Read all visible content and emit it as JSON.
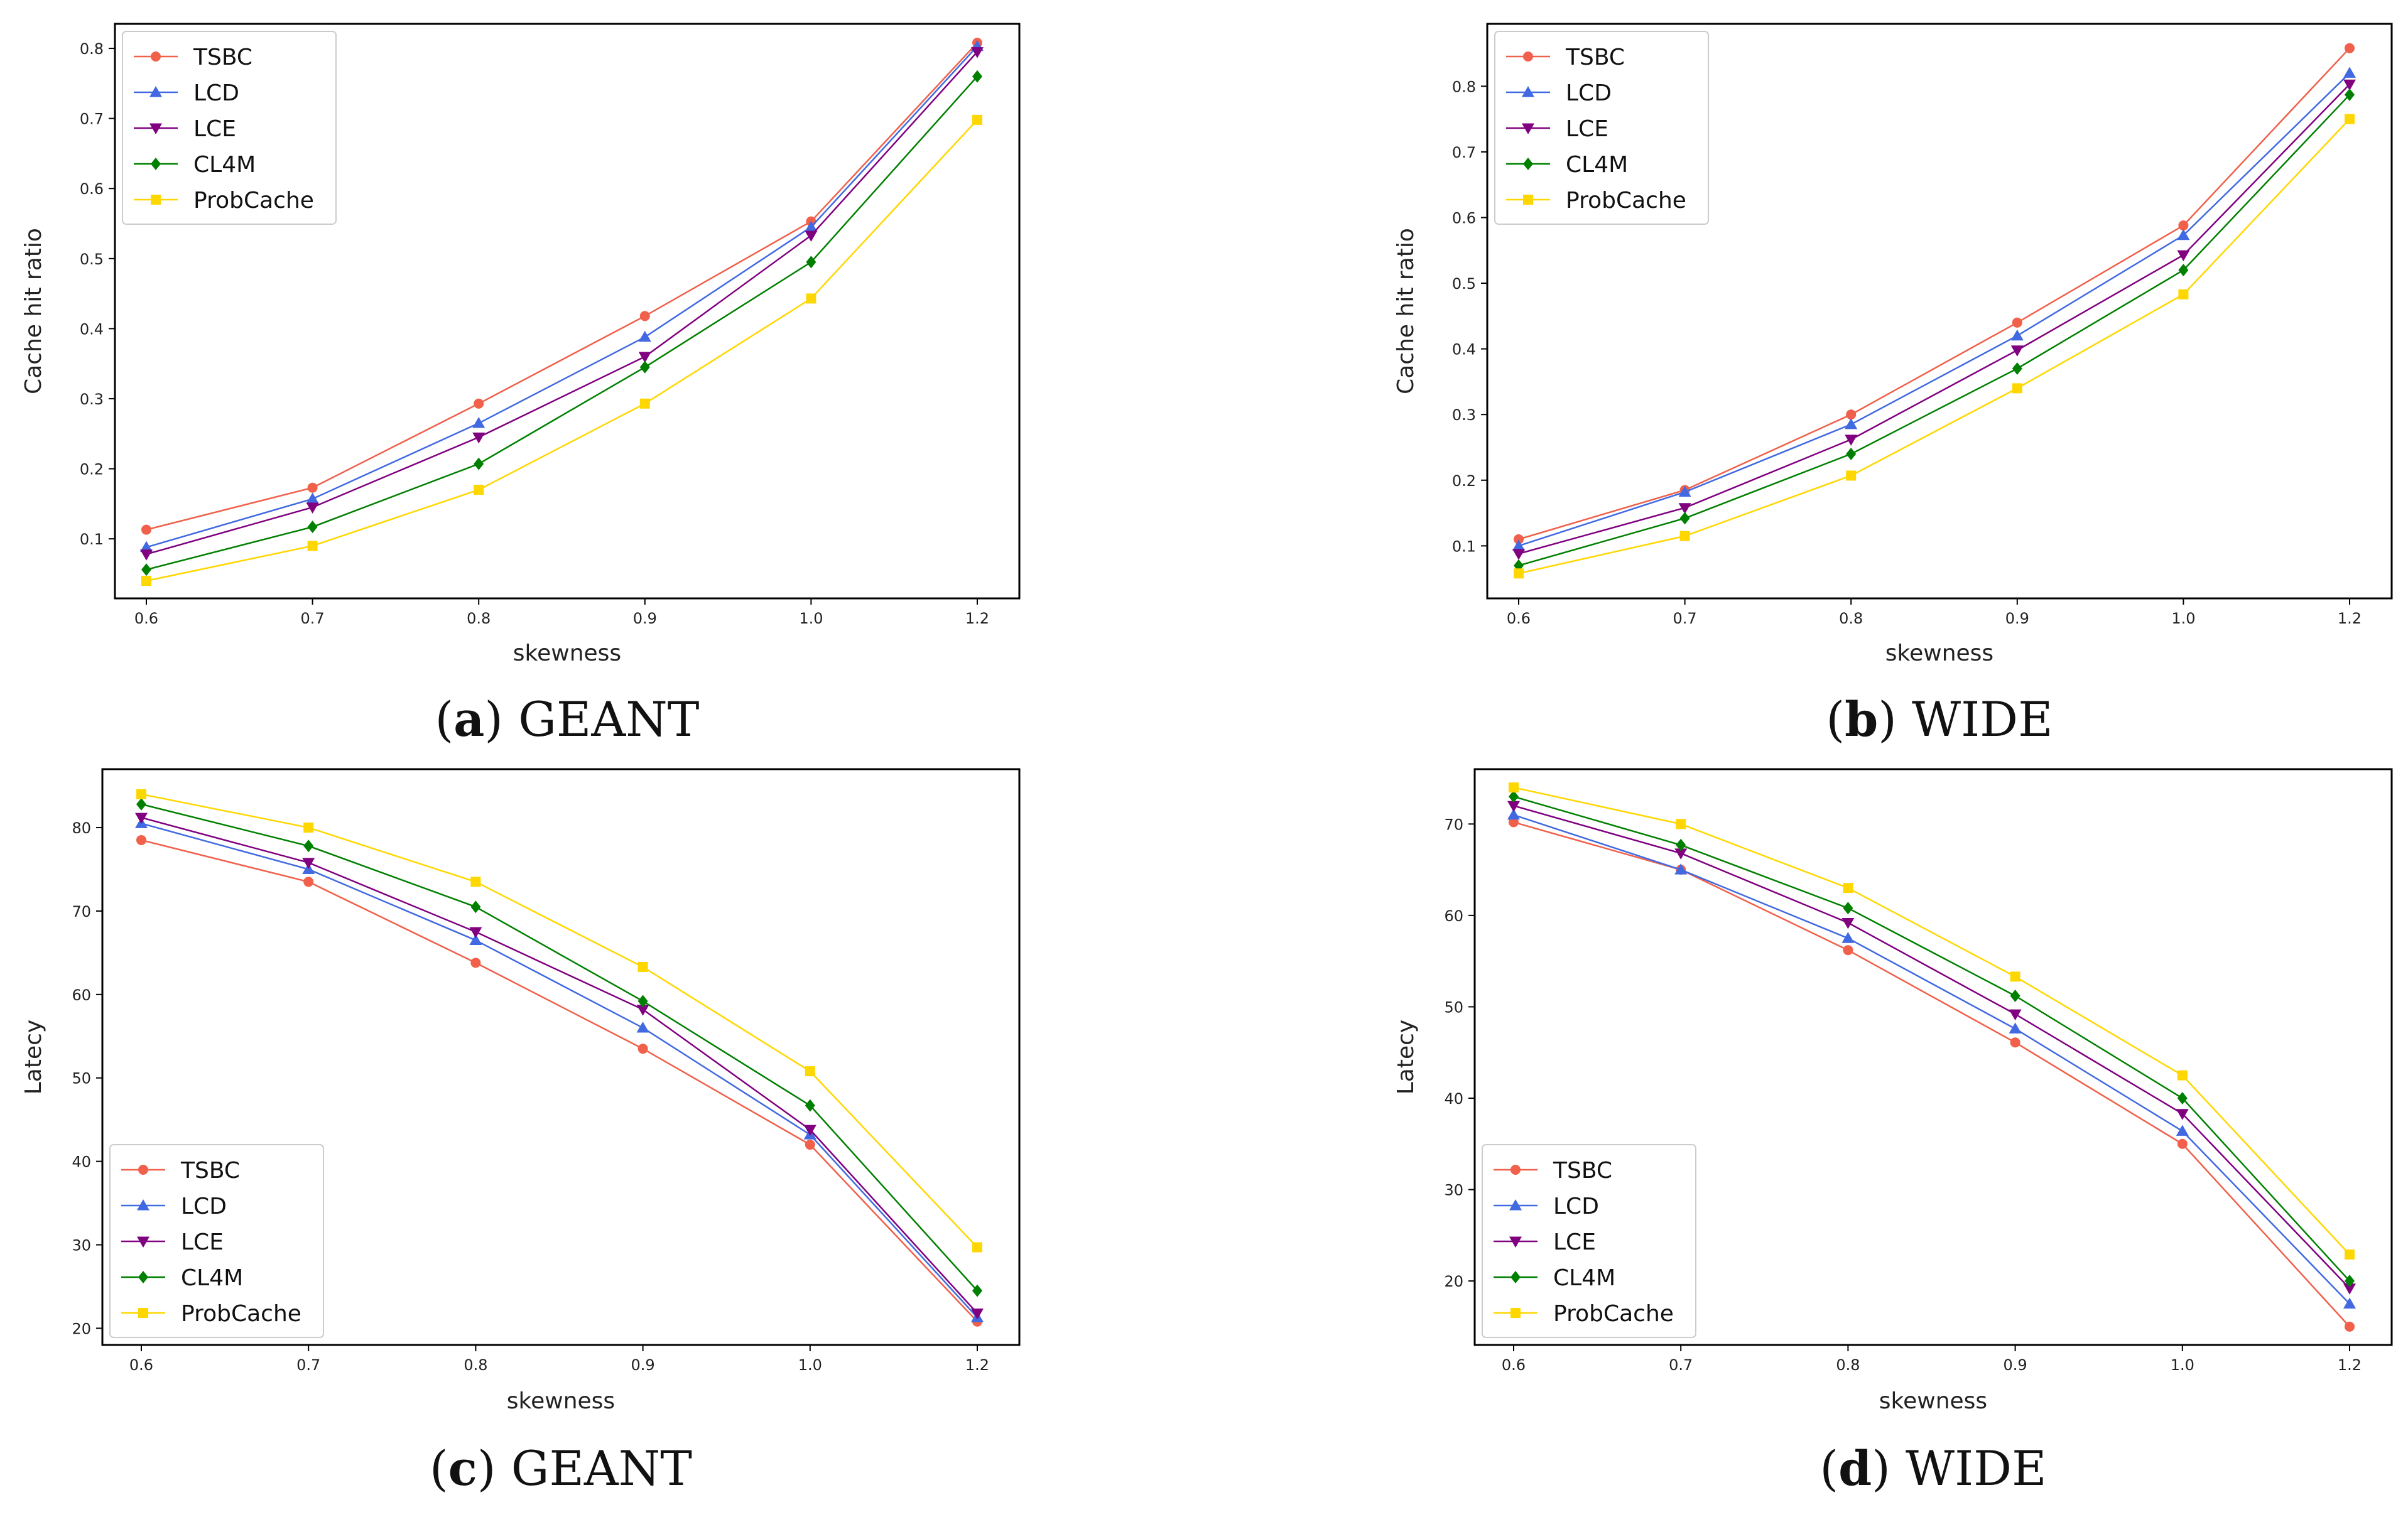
{
  "figure": {
    "series_style": [
      {
        "name": "TSBC",
        "color": "#f0604a",
        "marker": "circle"
      },
      {
        "name": "LCD",
        "color": "#4169e1",
        "marker": "triangle-up"
      },
      {
        "name": "LCE",
        "color": "#800080",
        "marker": "triangle-down"
      },
      {
        "name": "CL4M",
        "color": "#008000",
        "marker": "diamond"
      },
      {
        "name": "ProbCache",
        "color": "#ffd700",
        "marker": "square"
      }
    ]
  },
  "chart_data": [
    {
      "id": "a",
      "type": "line",
      "caption_letter": "a",
      "caption_text": "GEANT",
      "xlabel": "skewness",
      "ylabel": "Cache hit ratio",
      "categories": [
        "0.6",
        "0.7",
        "0.8",
        "0.9",
        "1.0",
        "1.2"
      ],
      "yticks": [
        0.1,
        0.2,
        0.3,
        0.4,
        0.5,
        0.6,
        0.7,
        0.8
      ],
      "ytick_labels": [
        "0.1",
        "0.2",
        "0.3",
        "0.4",
        "0.5",
        "0.6",
        "0.7",
        "0.8"
      ],
      "ylim": [
        0.015,
        0.835
      ],
      "legend": "top-left",
      "series": [
        {
          "name": "TSBC",
          "values": [
            0.113,
            0.173,
            0.293,
            0.418,
            0.553,
            0.808
          ]
        },
        {
          "name": "LCD",
          "values": [
            0.088,
            0.157,
            0.265,
            0.388,
            0.545,
            0.803
          ]
        },
        {
          "name": "LCE",
          "values": [
            0.078,
            0.145,
            0.245,
            0.36,
            0.533,
            0.795
          ]
        },
        {
          "name": "CL4M",
          "values": [
            0.056,
            0.117,
            0.207,
            0.345,
            0.495,
            0.76
          ]
        },
        {
          "name": "ProbCache",
          "values": [
            0.04,
            0.09,
            0.17,
            0.293,
            0.443,
            0.698
          ]
        }
      ]
    },
    {
      "id": "b",
      "type": "line",
      "caption_letter": "b",
      "caption_text": "WIDE",
      "xlabel": "skewness",
      "ylabel": "Cache hit ratio",
      "categories": [
        "0.6",
        "0.7",
        "0.8",
        "0.9",
        "1.0",
        "1.2"
      ],
      "yticks": [
        0.1,
        0.2,
        0.3,
        0.4,
        0.5,
        0.6,
        0.7,
        0.8
      ],
      "ytick_labels": [
        "0.1",
        "0.2",
        "0.3",
        "0.4",
        "0.5",
        "0.6",
        "0.7",
        "0.8"
      ],
      "ylim": [
        0.02,
        0.895
      ],
      "legend": "top-left",
      "series": [
        {
          "name": "TSBC",
          "values": [
            0.11,
            0.185,
            0.3,
            0.44,
            0.588,
            0.858
          ]
        },
        {
          "name": "LCD",
          "values": [
            0.1,
            0.182,
            0.285,
            0.42,
            0.573,
            0.82
          ]
        },
        {
          "name": "LCE",
          "values": [
            0.088,
            0.158,
            0.262,
            0.398,
            0.543,
            0.803
          ]
        },
        {
          "name": "CL4M",
          "values": [
            0.07,
            0.142,
            0.24,
            0.37,
            0.52,
            0.787
          ]
        },
        {
          "name": "ProbCache",
          "values": [
            0.058,
            0.115,
            0.207,
            0.34,
            0.483,
            0.75
          ]
        }
      ]
    },
    {
      "id": "c",
      "type": "line",
      "caption_letter": "c",
      "caption_text": "GEANT",
      "xlabel": "skewness",
      "ylabel": "Latecy",
      "categories": [
        "0.6",
        "0.7",
        "0.8",
        "0.9",
        "1.0",
        "1.2"
      ],
      "yticks": [
        20,
        30,
        40,
        50,
        60,
        70,
        80
      ],
      "ytick_labels": [
        "20",
        "30",
        "40",
        "50",
        "60",
        "70",
        "80"
      ],
      "ylim": [
        18,
        87
      ],
      "legend": "bottom-left",
      "series": [
        {
          "name": "TSBC",
          "values": [
            78.5,
            73.5,
            63.8,
            53.5,
            42.0,
            20.8
          ]
        },
        {
          "name": "LCD",
          "values": [
            80.5,
            75.0,
            66.5,
            56.0,
            43.2,
            21.3
          ]
        },
        {
          "name": "LCE",
          "values": [
            81.2,
            75.8,
            67.5,
            58.2,
            43.8,
            21.8
          ]
        },
        {
          "name": "CL4M",
          "values": [
            82.8,
            77.8,
            70.5,
            59.2,
            46.7,
            24.5
          ]
        },
        {
          "name": "ProbCache",
          "values": [
            84.0,
            80.0,
            73.5,
            63.3,
            50.8,
            29.7
          ]
        }
      ]
    },
    {
      "id": "d",
      "type": "line",
      "caption_letter": "d",
      "caption_text": "WIDE",
      "xlabel": "skewness",
      "ylabel": "Latecy",
      "categories": [
        "0.6",
        "0.7",
        "0.8",
        "0.9",
        "1.0",
        "1.2"
      ],
      "yticks": [
        20,
        30,
        40,
        50,
        60,
        70
      ],
      "ytick_labels": [
        "20",
        "30",
        "40",
        "50",
        "60",
        "70"
      ],
      "ylim": [
        13,
        76
      ],
      "legend": "bottom-left",
      "series": [
        {
          "name": "TSBC",
          "values": [
            70.2,
            65.0,
            56.2,
            46.1,
            35.0,
            15.0
          ]
        },
        {
          "name": "LCD",
          "values": [
            71.0,
            65.0,
            57.5,
            47.6,
            36.4,
            17.5
          ]
        },
        {
          "name": "LCE",
          "values": [
            72.0,
            66.8,
            59.2,
            49.2,
            38.3,
            19.2
          ]
        },
        {
          "name": "CL4M",
          "values": [
            73.0,
            67.7,
            60.8,
            51.2,
            40.0,
            20.0
          ]
        },
        {
          "name": "ProbCache",
          "values": [
            74.0,
            70.0,
            63.0,
            53.3,
            42.5,
            22.9
          ]
        }
      ]
    }
  ]
}
